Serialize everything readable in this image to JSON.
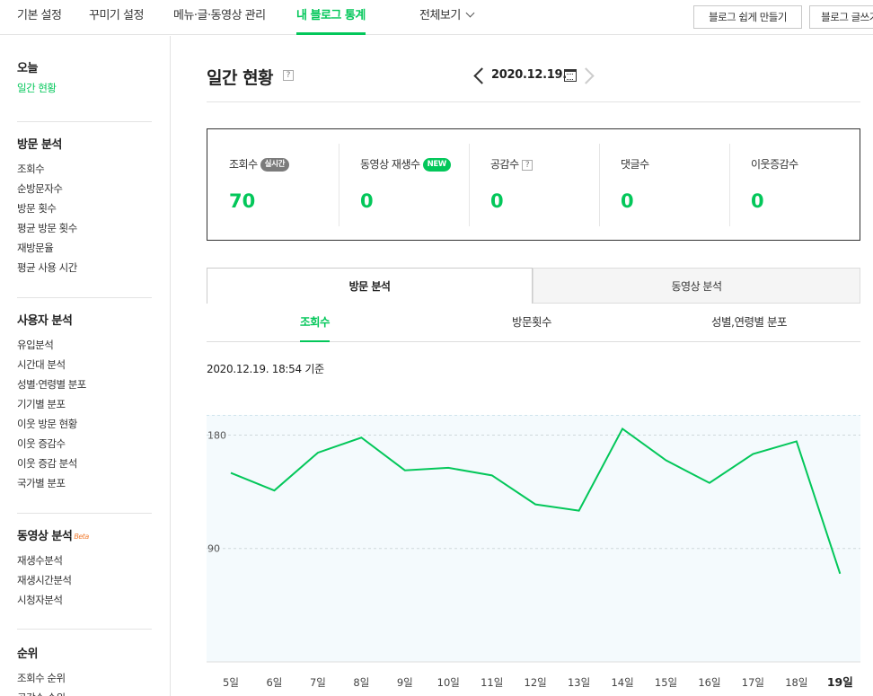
{
  "topnav": {
    "tabs": [
      {
        "label": "기본 설정",
        "active": false
      },
      {
        "label": "꾸미기 설정",
        "active": false
      },
      {
        "label": "메뉴·글·동영상 관리",
        "active": false
      },
      {
        "label": "내 블로그 통계",
        "active": true
      },
      {
        "label": "전체보기",
        "active": false
      }
    ],
    "buttons": [
      "블로그 쉽게 만들기",
      "블로그 글쓰기"
    ]
  },
  "sidebar": {
    "sections": [
      {
        "title": "오늘",
        "items": [
          {
            "label": "일간 현황",
            "active": true
          }
        ]
      },
      {
        "title": "방문 분석",
        "items": [
          {
            "label": "조회수"
          },
          {
            "label": "순방문자수"
          },
          {
            "label": "방문 횟수"
          },
          {
            "label": "평균 방문 횟수"
          },
          {
            "label": "재방문율"
          },
          {
            "label": "평균 사용 시간"
          }
        ]
      },
      {
        "title": "사용자 분석",
        "items": [
          {
            "label": "유입분석"
          },
          {
            "label": "시간대 분석"
          },
          {
            "label": "성별·연령별 분포"
          },
          {
            "label": "기기별 분포"
          },
          {
            "label": "이웃 방문 현황"
          },
          {
            "label": "이웃 증감수"
          },
          {
            "label": "이웃 증감 분석"
          },
          {
            "label": "국가별 분포"
          }
        ]
      },
      {
        "title": "동영상 분석",
        "beta": "Beta",
        "items": [
          {
            "label": "재생수분석"
          },
          {
            "label": "재생시간분석"
          },
          {
            "label": "시청자분석"
          }
        ]
      },
      {
        "title": "순위",
        "items": [
          {
            "label": "조회수 순위"
          },
          {
            "label": "공감수 순위"
          }
        ]
      }
    ]
  },
  "main": {
    "title": "일간 현황",
    "help": "?",
    "date": "2020.12.19.",
    "stats": [
      {
        "label": "조회수",
        "badge": "실시간",
        "badge_color": "gray",
        "value": "70"
      },
      {
        "label": "동영상 재생수",
        "badge": "NEW",
        "badge_color": "green",
        "value": "0"
      },
      {
        "label": "공감수",
        "help": "?",
        "value": "0"
      },
      {
        "label": "댓글수",
        "value": "0"
      },
      {
        "label": "이웃증감수",
        "value": "0"
      }
    ],
    "tabs": [
      {
        "label": "방문 분석",
        "active": true
      },
      {
        "label": "동영상 분석",
        "active": false
      }
    ],
    "subtabs": [
      {
        "label": "조회수",
        "active": true
      },
      {
        "label": "방문횟수",
        "active": false
      },
      {
        "label": "성별,연령별 분포",
        "active": false
      }
    ],
    "basis": "2020.12.19. 18:54 기준"
  },
  "chart_data": {
    "type": "line",
    "categories": [
      "5일",
      "6일",
      "7일",
      "8일",
      "9일",
      "10일",
      "11일",
      "12일",
      "13일",
      "14일",
      "15일",
      "16일",
      "17일",
      "18일",
      "19일"
    ],
    "series": [
      {
        "values": [
          150,
          136,
          166,
          178,
          152,
          154,
          148,
          125,
          120,
          185,
          160,
          142,
          165,
          175,
          70
        ]
      }
    ],
    "yticks": [
      180,
      90
    ],
    "ylim": [
      0,
      196
    ],
    "highlight_category": "19일",
    "line_color": "#03c75a",
    "plot_bg": "#f4fafd"
  }
}
